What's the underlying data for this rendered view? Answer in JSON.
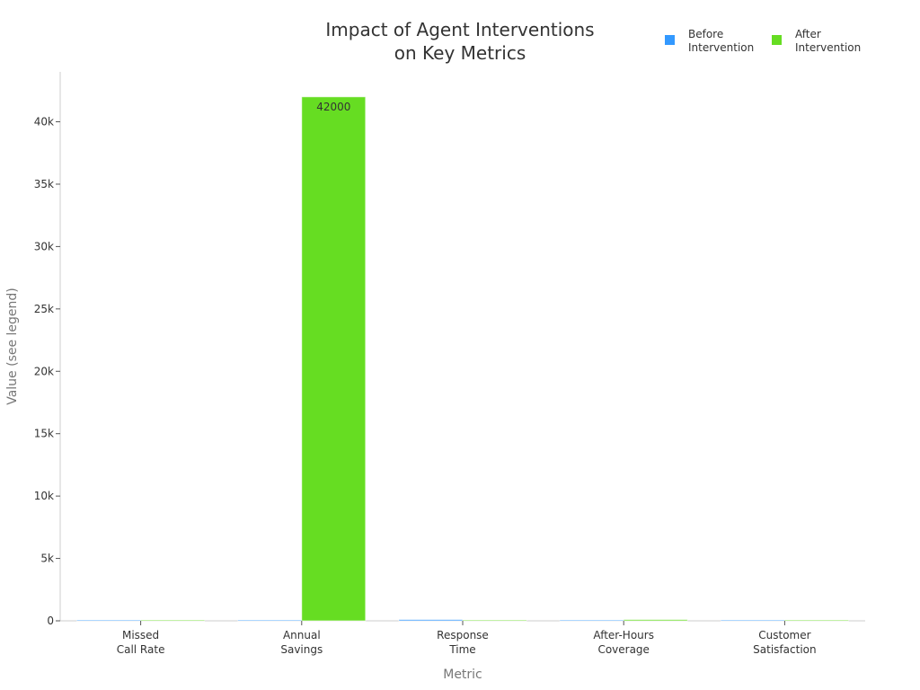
{
  "chart_data": {
    "type": "bar",
    "title_lines": [
      "Impact of Agent Interventions",
      "on Key Metrics"
    ],
    "xlabel": "Metric",
    "ylabel": "Value (see legend)",
    "categories": [
      [
        "Missed",
        "Call Rate"
      ],
      [
        "Annual",
        "Savings"
      ],
      [
        "Response",
        "Time"
      ],
      [
        "After-Hours",
        "Coverage"
      ],
      [
        "Customer",
        "Satisfaction"
      ]
    ],
    "series": [
      {
        "name": [
          "Before",
          "Intervention"
        ],
        "color": "#3399ff",
        "values": [
          30,
          0,
          100,
          0,
          3
        ]
      },
      {
        "name": [
          "After",
          "Intervention"
        ],
        "color": "#66dd22",
        "values": [
          5,
          42000,
          1,
          100,
          4.5
        ]
      }
    ],
    "data_labels": [
      {
        "series": 1,
        "category": 1,
        "text": "42000"
      }
    ],
    "ylim": [
      0,
      44000
    ],
    "yticks": [
      0,
      5000,
      10000,
      15000,
      20000,
      25000,
      30000,
      35000,
      40000
    ],
    "ytick_labels": [
      "0",
      "5k",
      "10k",
      "15k",
      "20k",
      "25k",
      "30k",
      "35k",
      "40k"
    ],
    "legend_position": "top-right",
    "grid": false
  }
}
